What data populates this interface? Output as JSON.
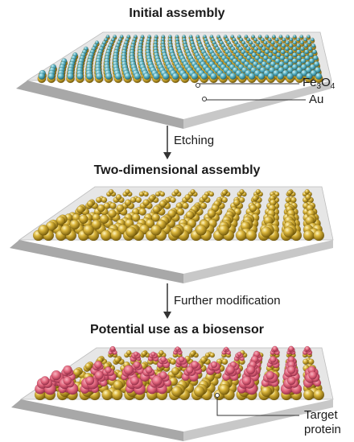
{
  "panels": [
    {
      "title": "Initial assembly"
    },
    {
      "title": "Two-dimensional assembly"
    },
    {
      "title": "Potential use as a biosensor"
    }
  ],
  "steps": [
    {
      "label": "Etching"
    },
    {
      "label": "Further modification"
    }
  ],
  "callouts": {
    "fe3o4": {
      "base": "Fe",
      "sub1": "3",
      "mid": "O",
      "sub2": "4"
    },
    "au": "Au",
    "target_line1": "Target",
    "target_line2": "protein"
  },
  "colors": {
    "gold": "#c9a227",
    "gold_dark": "#8a6d10",
    "gold_light": "#f3e08a",
    "teal": "#5fb8c9",
    "teal_dark": "#2d7f92",
    "pink": "#e0637a",
    "pink_dark": "#a83550",
    "slab_top": "#e4e4e4",
    "slab_side": "#b8b8b8",
    "slab_front": "#9c9c9c"
  }
}
